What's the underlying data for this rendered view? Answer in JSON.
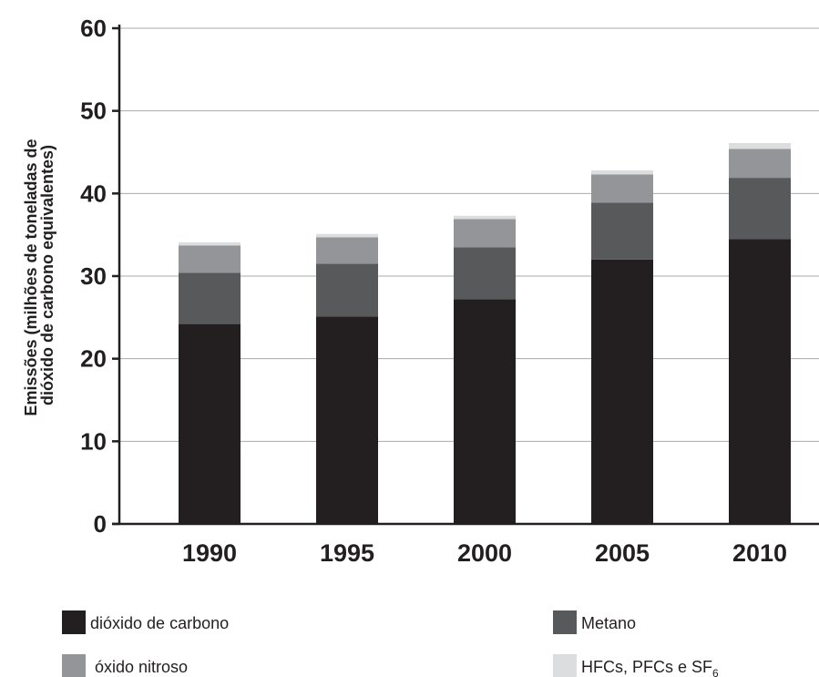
{
  "chart_data": {
    "type": "bar",
    "stacked": true,
    "title": "",
    "xlabel": "",
    "ylabel_lines": [
      "Emissões (milhões de toneladas de",
      "dióxido de carbono equivalentes)"
    ],
    "ylim": [
      0,
      60
    ],
    "yticks": [
      "0",
      "10",
      "20",
      "30",
      "40",
      "50",
      "60"
    ],
    "grid": true,
    "categories": [
      "1990",
      "1995",
      "2000",
      "2005",
      "2010"
    ],
    "series": [
      {
        "name": "dióxido de carbono",
        "color": "#231f20",
        "values": [
          24.2,
          25.1,
          27.2,
          32.0,
          34.5
        ]
      },
      {
        "name": "Metano",
        "color": "#58595b",
        "values": [
          6.2,
          6.4,
          6.3,
          6.9,
          7.4
        ]
      },
      {
        "name": "óxido nitroso",
        "color": "#939598",
        "values": [
          3.3,
          3.2,
          3.4,
          3.4,
          3.5
        ]
      },
      {
        "name": "HFCs, PFCs e SF",
        "name_subscript": "6",
        "color": "#dcdddf",
        "values": [
          0.4,
          0.4,
          0.4,
          0.5,
          0.7
        ]
      }
    ],
    "legend_placement": "bottom"
  }
}
